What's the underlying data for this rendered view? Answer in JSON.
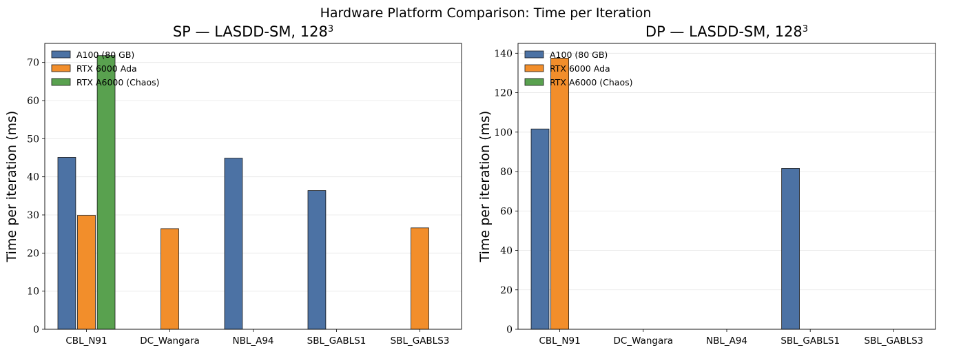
{
  "figure": {
    "suptitle": "Hardware Platform Comparison: Time per Iteration"
  },
  "colors": {
    "A100 (80 GB)": "#4c72a4",
    "RTX 6000 Ada": "#f28e2b",
    "RTX A6000 (Chaos)": "#59a14f"
  },
  "chart_data": [
    {
      "type": "bar",
      "title": "SP — LASDD-SM, 128",
      "title_superscript": "3",
      "xlabel": "",
      "ylabel": "Time per iteration (ms)",
      "categories": [
        "CBL_N91",
        "DC_Wangara",
        "NBL_A94",
        "SBL_GABLS1",
        "SBL_GABLS3"
      ],
      "ylim": [
        0,
        75
      ],
      "yticks": [
        0,
        10,
        20,
        30,
        40,
        50,
        60,
        70
      ],
      "grid": "y",
      "legend": "top-left",
      "series": [
        {
          "name": "A100 (80 GB)",
          "values": [
            45.1,
            null,
            44.9,
            36.4,
            null
          ]
        },
        {
          "name": "RTX 6000 Ada",
          "values": [
            29.9,
            26.4,
            null,
            null,
            26.6
          ]
        },
        {
          "name": "RTX A6000 (Chaos)",
          "values": [
            71.8,
            null,
            null,
            null,
            null
          ]
        }
      ]
    },
    {
      "type": "bar",
      "title": "DP — LASDD-SM, 128",
      "title_superscript": "3",
      "xlabel": "",
      "ylabel": "Time per iteration (ms)",
      "categories": [
        "CBL_N91",
        "DC_Wangara",
        "NBL_A94",
        "SBL_GABLS1",
        "SBL_GABLS3"
      ],
      "ylim": [
        0,
        145
      ],
      "yticks": [
        0,
        20,
        40,
        60,
        80,
        100,
        120,
        140
      ],
      "grid": "y",
      "legend": "top-left",
      "series": [
        {
          "name": "A100 (80 GB)",
          "values": [
            101.6,
            null,
            null,
            81.6,
            null
          ]
        },
        {
          "name": "RTX 6000 Ada",
          "values": [
            137.5,
            null,
            null,
            null,
            null
          ]
        },
        {
          "name": "RTX A6000 (Chaos)",
          "values": [
            null,
            null,
            null,
            null,
            null
          ]
        }
      ]
    }
  ]
}
